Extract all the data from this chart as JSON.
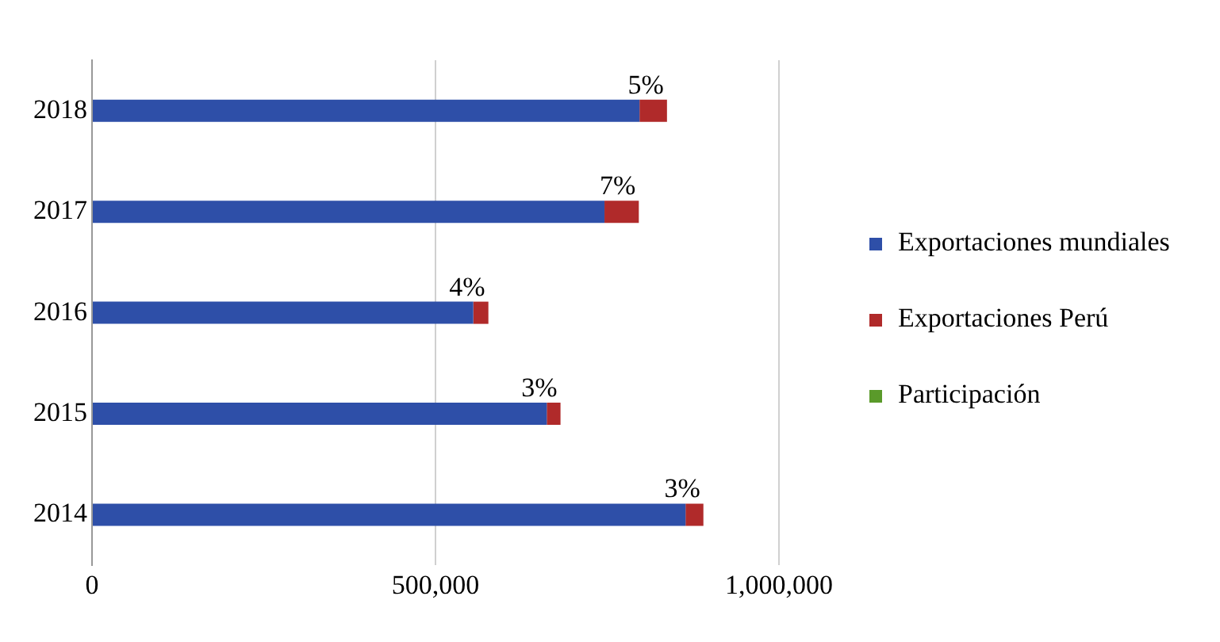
{
  "chart_data": {
    "type": "bar",
    "orientation": "horizontal",
    "stacked": true,
    "categories": [
      "2018",
      "2017",
      "2016",
      "2015",
      "2014"
    ],
    "series": [
      {
        "name": "Exportaciones mundiales",
        "color": "#2e4fa8",
        "values": [
          797000,
          746000,
          555000,
          662000,
          864000
        ]
      },
      {
        "name": "Exportaciones Perú",
        "color": "#b02a2a",
        "values": [
          40000,
          50000,
          22000,
          20000,
          26000
        ]
      },
      {
        "name": "Participación",
        "color": "#5a9a2a",
        "values": [
          null,
          null,
          null,
          null,
          null
        ]
      }
    ],
    "annotations": [
      {
        "text": "5%",
        "x": 837000,
        "y": "2018"
      },
      {
        "text": "7%",
        "x": 796000,
        "y": "2017"
      },
      {
        "text": "4%",
        "x": 577000,
        "y": "2016"
      },
      {
        "text": "3%",
        "x": 682000,
        "y": "2015"
      },
      {
        "text": "3%",
        "x": 890000,
        "y": "2014"
      }
    ],
    "xlim": [
      0,
      1000000
    ],
    "xticks": [
      {
        "value": 0,
        "label": "0"
      },
      {
        "value": 500000,
        "label": "500,000"
      },
      {
        "value": 1000000,
        "label": "1,000,000"
      }
    ],
    "grid": "x",
    "legend": "right"
  }
}
